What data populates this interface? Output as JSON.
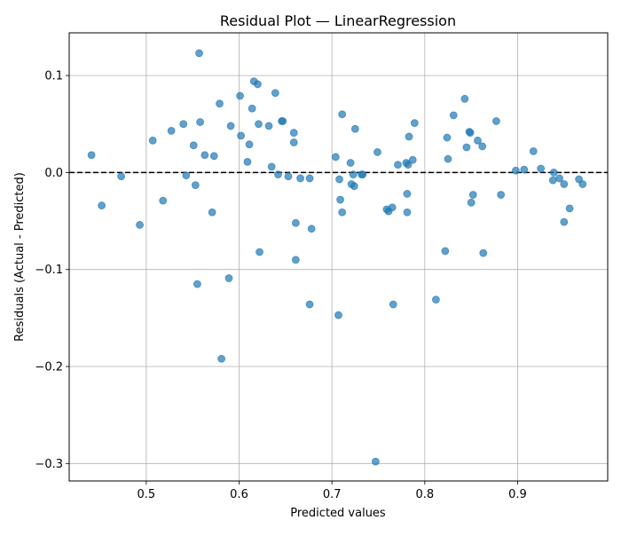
{
  "chart_data": {
    "type": "scatter",
    "title": "Residual Plot — LinearRegression",
    "xlabel": "Predicted values",
    "ylabel": "Residuals (Actual - Predicted)",
    "xlim": [
      0.417,
      0.997
    ],
    "ylim": [
      -0.318,
      0.144
    ],
    "xticks": [
      0.5,
      0.6,
      0.7,
      0.8,
      0.9
    ],
    "xtick_labels": [
      "0.5",
      "0.6",
      "0.7",
      "0.8",
      "0.9"
    ],
    "yticks": [
      -0.3,
      -0.2,
      -0.1,
      0.0,
      0.1
    ],
    "ytick_labels": [
      "−0.3",
      "−0.2",
      "−0.1",
      "0.0",
      "0.1"
    ],
    "grid": true,
    "reference_line": {
      "y": 0,
      "style": "dashed",
      "color": "#000000"
    },
    "marker_color": "#1f77b4",
    "marker_alpha": 0.7,
    "points": [
      {
        "x": 0.441,
        "y": 0.018
      },
      {
        "x": 0.452,
        "y": -0.034
      },
      {
        "x": 0.473,
        "y": -0.004
      },
      {
        "x": 0.493,
        "y": -0.054
      },
      {
        "x": 0.507,
        "y": 0.033
      },
      {
        "x": 0.518,
        "y": -0.029
      },
      {
        "x": 0.527,
        "y": 0.043
      },
      {
        "x": 0.54,
        "y": 0.05
      },
      {
        "x": 0.543,
        "y": -0.003
      },
      {
        "x": 0.551,
        "y": 0.028
      },
      {
        "x": 0.553,
        "y": -0.013
      },
      {
        "x": 0.555,
        "y": -0.115
      },
      {
        "x": 0.557,
        "y": 0.123
      },
      {
        "x": 0.558,
        "y": 0.052
      },
      {
        "x": 0.563,
        "y": 0.018
      },
      {
        "x": 0.571,
        "y": -0.041
      },
      {
        "x": 0.573,
        "y": 0.017
      },
      {
        "x": 0.579,
        "y": 0.071
      },
      {
        "x": 0.581,
        "y": -0.192
      },
      {
        "x": 0.589,
        "y": -0.109
      },
      {
        "x": 0.591,
        "y": 0.048
      },
      {
        "x": 0.601,
        "y": 0.079
      },
      {
        "x": 0.602,
        "y": 0.038
      },
      {
        "x": 0.609,
        "y": 0.011
      },
      {
        "x": 0.611,
        "y": 0.029
      },
      {
        "x": 0.614,
        "y": 0.066
      },
      {
        "x": 0.616,
        "y": 0.094
      },
      {
        "x": 0.62,
        "y": 0.091
      },
      {
        "x": 0.621,
        "y": 0.05
      },
      {
        "x": 0.622,
        "y": -0.082
      },
      {
        "x": 0.632,
        "y": 0.048
      },
      {
        "x": 0.635,
        "y": 0.006
      },
      {
        "x": 0.639,
        "y": 0.082
      },
      {
        "x": 0.642,
        "y": -0.002
      },
      {
        "x": 0.646,
        "y": 0.053
      },
      {
        "x": 0.647,
        "y": 0.053
      },
      {
        "x": 0.653,
        "y": -0.004
      },
      {
        "x": 0.659,
        "y": 0.041
      },
      {
        "x": 0.659,
        "y": 0.031
      },
      {
        "x": 0.661,
        "y": -0.052
      },
      {
        "x": 0.661,
        "y": -0.09
      },
      {
        "x": 0.666,
        "y": -0.006
      },
      {
        "x": 0.676,
        "y": -0.006
      },
      {
        "x": 0.676,
        "y": -0.136
      },
      {
        "x": 0.678,
        "y": -0.058
      },
      {
        "x": 0.704,
        "y": 0.016
      },
      {
        "x": 0.707,
        "y": -0.147
      },
      {
        "x": 0.708,
        "y": -0.007
      },
      {
        "x": 0.709,
        "y": -0.028
      },
      {
        "x": 0.711,
        "y": -0.041
      },
      {
        "x": 0.711,
        "y": 0.06
      },
      {
        "x": 0.72,
        "y": 0.01
      },
      {
        "x": 0.721,
        "y": -0.012
      },
      {
        "x": 0.723,
        "y": -0.002
      },
      {
        "x": 0.724,
        "y": -0.014
      },
      {
        "x": 0.725,
        "y": 0.045
      },
      {
        "x": 0.732,
        "y": -0.002
      },
      {
        "x": 0.733,
        "y": -0.002
      },
      {
        "x": 0.747,
        "y": -0.298
      },
      {
        "x": 0.749,
        "y": 0.021
      },
      {
        "x": 0.759,
        "y": -0.038
      },
      {
        "x": 0.761,
        "y": -0.04
      },
      {
        "x": 0.765,
        "y": -0.036
      },
      {
        "x": 0.766,
        "y": -0.136
      },
      {
        "x": 0.771,
        "y": 0.008
      },
      {
        "x": 0.78,
        "y": 0.01
      },
      {
        "x": 0.781,
        "y": -0.041
      },
      {
        "x": 0.781,
        "y": -0.022
      },
      {
        "x": 0.782,
        "y": 0.008
      },
      {
        "x": 0.783,
        "y": 0.037
      },
      {
        "x": 0.787,
        "y": 0.013
      },
      {
        "x": 0.789,
        "y": 0.051
      },
      {
        "x": 0.812,
        "y": -0.131
      },
      {
        "x": 0.822,
        "y": -0.081
      },
      {
        "x": 0.824,
        "y": 0.036
      },
      {
        "x": 0.825,
        "y": 0.014
      },
      {
        "x": 0.831,
        "y": 0.059
      },
      {
        "x": 0.843,
        "y": 0.076
      },
      {
        "x": 0.845,
        "y": 0.026
      },
      {
        "x": 0.848,
        "y": 0.042
      },
      {
        "x": 0.849,
        "y": 0.041
      },
      {
        "x": 0.85,
        "y": -0.031
      },
      {
        "x": 0.852,
        "y": -0.023
      },
      {
        "x": 0.857,
        "y": 0.033
      },
      {
        "x": 0.862,
        "y": 0.027
      },
      {
        "x": 0.863,
        "y": -0.083
      },
      {
        "x": 0.877,
        "y": 0.053
      },
      {
        "x": 0.882,
        "y": -0.023
      },
      {
        "x": 0.898,
        "y": 0.002
      },
      {
        "x": 0.907,
        "y": 0.003
      },
      {
        "x": 0.917,
        "y": 0.022
      },
      {
        "x": 0.925,
        "y": 0.004
      },
      {
        "x": 0.938,
        "y": -0.008
      },
      {
        "x": 0.939,
        "y": 0.0
      },
      {
        "x": 0.945,
        "y": -0.006
      },
      {
        "x": 0.95,
        "y": -0.012
      },
      {
        "x": 0.95,
        "y": -0.051
      },
      {
        "x": 0.956,
        "y": -0.037
      },
      {
        "x": 0.966,
        "y": -0.007
      },
      {
        "x": 0.97,
        "y": -0.012
      }
    ]
  }
}
